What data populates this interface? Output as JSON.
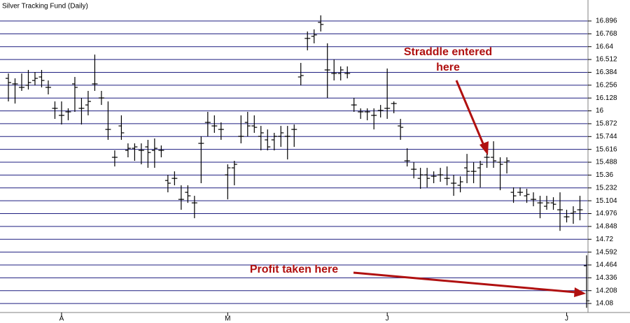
{
  "chart_data": {
    "type": "ohlc",
    "title": "Silver Tracking Fund (Daily)",
    "annotations": [
      "Straddle entered",
      "here",
      "Profit taken here"
    ],
    "color": "#000000",
    "grid": true,
    "grid_color": "#1e1e80",
    "ylim": [
      13.99,
      17.105
    ],
    "yticks": [
      14.08,
      14.208,
      14.336,
      14.464,
      14.592,
      14.72,
      14.848,
      14.976,
      15.104,
      15.232,
      15.36,
      15.488,
      15.616,
      15.744,
      15.872,
      16,
      16.128,
      16.256,
      16.384,
      16.512,
      16.64,
      16.768,
      16.896
    ],
    "categories": [
      null,
      null,
      null,
      null,
      null,
      null,
      null,
      null,
      "A",
      null,
      null,
      null,
      null,
      null,
      null,
      null,
      null,
      null,
      null,
      null,
      null,
      null,
      null,
      null,
      null,
      null,
      null,
      null,
      null,
      null,
      null,
      null,
      null,
      "M",
      null,
      null,
      null,
      null,
      null,
      null,
      null,
      null,
      null,
      null,
      null,
      null,
      null,
      null,
      null,
      null,
      null,
      null,
      null,
      null,
      null,
      null,
      null,
      "J",
      null,
      null,
      null,
      null,
      null,
      null,
      null,
      null,
      null,
      null,
      null,
      null,
      null,
      null,
      null,
      null,
      null,
      null,
      null,
      null,
      null,
      null,
      null,
      null,
      null,
      null,
      "J",
      null,
      null,
      null
    ],
    "high": [
      16.373,
      16.324,
      16.373,
      16.408,
      16.387,
      16.408,
      16.303,
      16.094,
      16.094,
      16.025,
      16.338,
      16.129,
      16.199,
      16.561,
      16.199,
      16.094,
      15.606,
      15.955,
      15.676,
      15.676,
      15.676,
      15.711,
      15.725,
      15.655,
      15.362,
      15.397,
      15.258,
      15.258,
      15.153,
      15.746,
      15.99,
      15.955,
      15.885,
      15.467,
      15.502,
      15.955,
      15.99,
      15.955,
      15.85,
      15.815,
      15.781,
      15.85,
      15.85,
      15.864,
      16.478,
      16.791,
      16.812,
      16.952,
      16.673,
      16.513,
      16.443,
      16.443,
      16.129,
      16.025,
      16.025,
      16.025,
      16.059,
      16.422,
      16.094,
      15.92,
      15.627,
      15.488,
      15.432,
      15.432,
      15.397,
      15.432,
      15.446,
      15.362,
      15.348,
      15.571,
      15.488,
      15.502,
      15.606,
      15.697,
      15.537,
      15.537,
      15.237,
      15.237,
      15.223,
      15.188,
      15.153,
      15.153,
      15.139,
      15.188,
      15.014,
      15.049,
      15.153,
      14.56
    ],
    "low": [
      16.094,
      16.073,
      16.199,
      16.213,
      16.255,
      16.234,
      16.164,
      15.92,
      15.864,
      15.906,
      15.99,
      15.864,
      15.955,
      16.199,
      16.059,
      15.711,
      15.446,
      15.711,
      15.537,
      15.502,
      15.467,
      15.432,
      15.432,
      15.537,
      15.188,
      15.258,
      15.014,
      15.083,
      14.93,
      15.279,
      15.746,
      15.781,
      15.711,
      15.118,
      15.258,
      15.676,
      15.746,
      15.781,
      15.606,
      15.606,
      15.606,
      15.641,
      15.516,
      15.641,
      16.255,
      16.603,
      16.673,
      16.791,
      16.129,
      16.303,
      16.303,
      16.324,
      15.99,
      15.92,
      15.906,
      15.815,
      15.934,
      15.92,
      15.976,
      15.711,
      15.446,
      15.327,
      15.223,
      15.237,
      15.279,
      15.293,
      15.258,
      15.153,
      15.188,
      15.279,
      15.279,
      15.237,
      15.432,
      15.432,
      15.209,
      15.376,
      15.083,
      15.153,
      15.083,
      15.049,
      14.93,
      15.014,
      15.014,
      14.804,
      14.888,
      14.874,
      14.909,
      14.037
    ],
    "open": [
      16.324,
      16.269,
      16.234,
      16.255,
      16.303,
      16.338,
      16.234,
      16.025,
      15.955,
      15.99,
      16.269,
      16.025,
      16.059,
      16.269,
      16.129,
      15.815,
      15.537,
      15.85,
      15.606,
      15.627,
      15.606,
      15.641,
      15.606,
      15.606,
      15.306,
      15.327,
      15.118,
      15.188,
      15.083,
      15.676,
      15.885,
      15.85,
      15.815,
      15.362,
      15.432,
      15.746,
      15.885,
      15.85,
      15.746,
      15.711,
      15.711,
      15.746,
      15.746,
      15.815,
      16.338,
      16.722,
      16.743,
      16.882,
      16.408,
      16.373,
      16.373,
      16.373,
      16.059,
      15.99,
      15.99,
      15.955,
      16.004,
      16.025,
      16.073,
      15.85,
      15.502,
      15.418,
      15.327,
      15.362,
      15.348,
      15.362,
      15.327,
      15.279,
      15.258,
      15.432,
      15.397,
      15.432,
      15.537,
      15.537,
      15.488,
      15.488,
      15.188,
      15.188,
      15.153,
      15.118,
      15.083,
      15.049,
      15.083,
      15.014,
      14.944,
      14.979,
      15.014,
      14.456
    ],
    "close": [
      16.282,
      16.269,
      16.234,
      16.282,
      16.324,
      16.303,
      16.234,
      16.025,
      15.955,
      15.99,
      16.234,
      16.025,
      16.094,
      16.269,
      16.129,
      15.815,
      15.537,
      15.781,
      15.627,
      15.641,
      15.606,
      15.585,
      15.627,
      15.606,
      15.279,
      15.327,
      15.118,
      15.153,
      15.083,
      15.676,
      15.885,
      15.85,
      15.815,
      15.432,
      15.467,
      15.746,
      15.85,
      15.836,
      15.781,
      15.641,
      15.746,
      15.781,
      15.746,
      15.815,
      16.352,
      16.722,
      16.757,
      16.861,
      16.408,
      16.373,
      16.408,
      16.373,
      16.059,
      15.99,
      15.99,
      15.955,
      16.004,
      16.025,
      16.073,
      15.836,
      15.502,
      15.418,
      15.362,
      15.327,
      15.348,
      15.362,
      15.327,
      15.279,
      15.293,
      15.397,
      15.397,
      15.467,
      15.537,
      15.502,
      15.467,
      15.502,
      15.153,
      15.188,
      15.167,
      15.118,
      15.083,
      15.083,
      15.069,
      15.014,
      14.944,
      14.993,
      15.014,
      14.107
    ]
  }
}
